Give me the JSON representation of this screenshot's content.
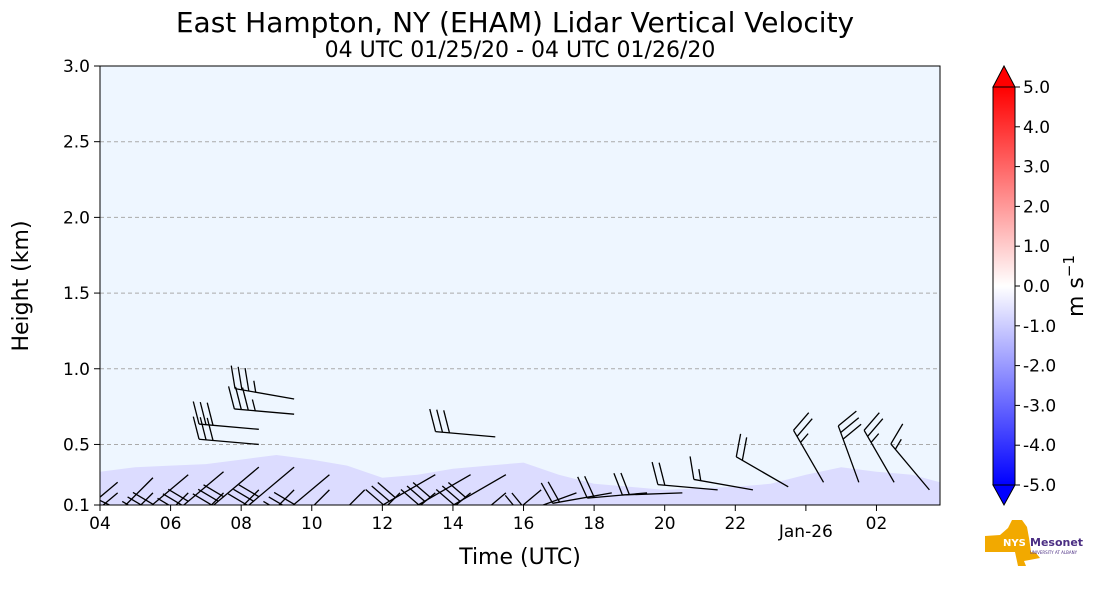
{
  "chart_data": {
    "type": "heatmap",
    "title": "East Hampton, NY (EHAM) Lidar Vertical Velocity",
    "subtitle": "04 UTC 01/25/20 - 04 UTC 01/26/20",
    "xlabel": "Time (UTC)",
    "ylabel": "Height (km)",
    "xlim_hours": [
      4,
      27.8
    ],
    "ylim": [
      0.1,
      3.0
    ],
    "x_ticks": [
      {
        "hour": 4,
        "label": "04"
      },
      {
        "hour": 6,
        "label": "06"
      },
      {
        "hour": 8,
        "label": "08"
      },
      {
        "hour": 10,
        "label": "10"
      },
      {
        "hour": 12,
        "label": "12"
      },
      {
        "hour": 14,
        "label": "14"
      },
      {
        "hour": 16,
        "label": "16"
      },
      {
        "hour": 18,
        "label": "18"
      },
      {
        "hour": 20,
        "label": "20"
      },
      {
        "hour": 22,
        "label": "22"
      },
      {
        "hour": 24,
        "label": "Jan-26"
      },
      {
        "hour": 26,
        "label": "02"
      }
    ],
    "y_ticks": [
      {
        "value": 0.1,
        "label": "0.1"
      },
      {
        "value": 0.5,
        "label": "0.5"
      },
      {
        "value": 1.0,
        "label": "1.0"
      },
      {
        "value": 1.5,
        "label": "1.5"
      },
      {
        "value": 2.0,
        "label": "2.0"
      },
      {
        "value": 2.5,
        "label": "2.5"
      },
      {
        "value": 3.0,
        "label": "3.0"
      }
    ],
    "grid": "horizontal dashed",
    "colorbar": {
      "label": "m s",
      "label_superscript": "−1",
      "range": [
        -5.0,
        5.0
      ],
      "ticks": [
        "5.0",
        "4.0",
        "3.0",
        "2.0",
        "1.0",
        "0.0",
        "-1.0",
        "-2.0",
        "-3.0",
        "-4.0",
        "-5.0"
      ],
      "colors": {
        "min": "#0000ff",
        "mid": "#ffffff",
        "max": "#ff0000"
      }
    },
    "background_color": "#eef6ff",
    "weak_downward_color": "#dcdcff",
    "echo_top": [
      {
        "hour": 4.0,
        "height": 0.32
      },
      {
        "hour": 5.0,
        "height": 0.35
      },
      {
        "hour": 6.0,
        "height": 0.36
      },
      {
        "hour": 7.0,
        "height": 0.37
      },
      {
        "hour": 8.0,
        "height": 0.4
      },
      {
        "hour": 9.0,
        "height": 0.43
      },
      {
        "hour": 10.0,
        "height": 0.4
      },
      {
        "hour": 11.0,
        "height": 0.36
      },
      {
        "hour": 12.0,
        "height": 0.28
      },
      {
        "hour": 13.0,
        "height": 0.3
      },
      {
        "hour": 14.0,
        "height": 0.34
      },
      {
        "hour": 15.0,
        "height": 0.36
      },
      {
        "hour": 16.0,
        "height": 0.38
      },
      {
        "hour": 17.0,
        "height": 0.3
      },
      {
        "hour": 18.0,
        "height": 0.24
      },
      {
        "hour": 19.0,
        "height": 0.22
      },
      {
        "hour": 20.0,
        "height": 0.2
      },
      {
        "hour": 21.0,
        "height": 0.21
      },
      {
        "hour": 22.0,
        "height": 0.22
      },
      {
        "hour": 23.0,
        "height": 0.24
      },
      {
        "hour": 24.0,
        "height": 0.3
      },
      {
        "hour": 25.0,
        "height": 0.35
      },
      {
        "hour": 26.0,
        "height": 0.32
      },
      {
        "hour": 27.0,
        "height": 0.3
      },
      {
        "hour": 27.8,
        "height": 0.25
      }
    ],
    "wind_barbs": [
      {
        "hour": 4.5,
        "height": 0.25,
        "dir": 230,
        "speed": 25
      },
      {
        "hour": 4.5,
        "height": 0.18,
        "dir": 230,
        "speed": 25
      },
      {
        "hour": 5.5,
        "height": 0.28,
        "dir": 225,
        "speed": 30
      },
      {
        "hour": 5.5,
        "height": 0.18,
        "dir": 225,
        "speed": 30
      },
      {
        "hour": 6.5,
        "height": 0.3,
        "dir": 230,
        "speed": 30
      },
      {
        "hour": 6.5,
        "height": 0.18,
        "dir": 225,
        "speed": 30
      },
      {
        "hour": 7.5,
        "height": 0.32,
        "dir": 230,
        "speed": 30
      },
      {
        "hour": 7.5,
        "height": 0.18,
        "dir": 225,
        "speed": 30
      },
      {
        "hour": 8.5,
        "height": 0.35,
        "dir": 230,
        "speed": 30
      },
      {
        "hour": 8.5,
        "height": 0.2,
        "dir": 225,
        "speed": 30
      },
      {
        "hour": 8.5,
        "height": 0.6,
        "dir": 275,
        "speed": 30
      },
      {
        "hour": 8.5,
        "height": 0.5,
        "dir": 275,
        "speed": 30
      },
      {
        "hour": 9.5,
        "height": 0.35,
        "dir": 230,
        "speed": 30
      },
      {
        "hour": 9.5,
        "height": 0.2,
        "dir": 225,
        "speed": 30
      },
      {
        "hour": 9.5,
        "height": 0.8,
        "dir": 280,
        "speed": 35
      },
      {
        "hour": 9.5,
        "height": 0.7,
        "dir": 275,
        "speed": 35
      },
      {
        "hour": 10.5,
        "height": 0.3,
        "dir": 230,
        "speed": 30
      },
      {
        "hour": 10.5,
        "height": 0.2,
        "dir": 225,
        "speed": 30
      },
      {
        "hour": 11.5,
        "height": 0.2,
        "dir": 225,
        "speed": 25
      },
      {
        "hour": 12.5,
        "height": 0.18,
        "dir": 225,
        "speed": 25
      },
      {
        "hour": 13.5,
        "height": 0.3,
        "dir": 240,
        "speed": 30
      },
      {
        "hour": 13.5,
        "height": 0.18,
        "dir": 230,
        "speed": 30
      },
      {
        "hour": 14.5,
        "height": 0.3,
        "dir": 240,
        "speed": 30
      },
      {
        "hour": 14.5,
        "height": 0.18,
        "dir": 230,
        "speed": 30
      },
      {
        "hour": 15.2,
        "height": 0.55,
        "dir": 275,
        "speed": 30
      },
      {
        "hour": 15.5,
        "height": 0.3,
        "dir": 240,
        "speed": 30
      },
      {
        "hour": 15.5,
        "height": 0.18,
        "dir": 230,
        "speed": 30
      },
      {
        "hour": 16.5,
        "height": 0.2,
        "dir": 230,
        "speed": 25
      },
      {
        "hour": 17.5,
        "height": 0.18,
        "dir": 250,
        "speed": 20
      },
      {
        "hour": 18.5,
        "height": 0.18,
        "dir": 260,
        "speed": 20
      },
      {
        "hour": 19.5,
        "height": 0.18,
        "dir": 265,
        "speed": 20
      },
      {
        "hour": 20.5,
        "height": 0.18,
        "dir": 268,
        "speed": 20
      },
      {
        "hour": 21.5,
        "height": 0.2,
        "dir": 275,
        "speed": 20
      },
      {
        "hour": 22.5,
        "height": 0.2,
        "dir": 280,
        "speed": 15
      },
      {
        "hour": 23.5,
        "height": 0.22,
        "dir": 300,
        "speed": 20
      },
      {
        "hour": 24.5,
        "height": 0.25,
        "dir": 330,
        "speed": 25
      },
      {
        "hour": 25.5,
        "height": 0.25,
        "dir": 340,
        "speed": 30
      },
      {
        "hour": 26.5,
        "height": 0.25,
        "dir": 330,
        "speed": 25
      },
      {
        "hour": 27.5,
        "height": 0.2,
        "dir": 320,
        "speed": 15
      }
    ]
  },
  "logo": {
    "text_nys": "NYS",
    "text_mesonet": "Mesonet",
    "text_sub": "UNIVERSITY AT ALBANY",
    "state_color": "#f2a900",
    "text_color": "#4b2e83"
  }
}
